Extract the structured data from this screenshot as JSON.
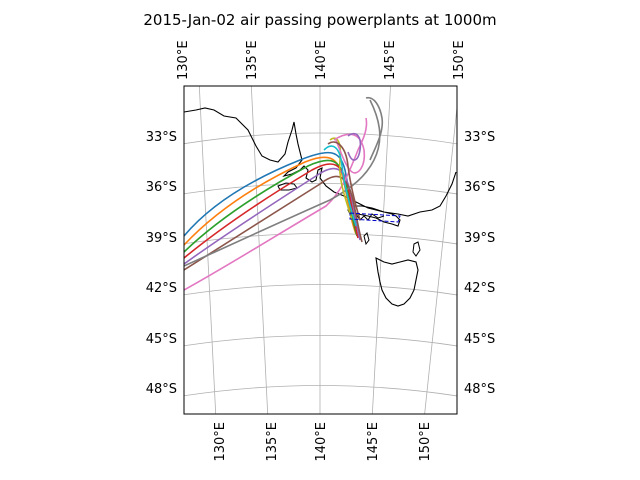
{
  "title": "2015-Jan-02 air passing powerplants at 1000m",
  "map": {
    "lon_ticks_top": [
      "130°E",
      "135°E",
      "140°E",
      "145°E",
      "150°E"
    ],
    "lon_ticks_bottom": [
      "130°E",
      "135°E",
      "140°E",
      "145°E",
      "150°E"
    ],
    "lat_ticks_left": [
      "33°S",
      "36°S",
      "39°S",
      "42°S",
      "45°S",
      "48°S"
    ],
    "lat_ticks_right": [
      "33°S",
      "36°S",
      "39°S",
      "42°S",
      "45°S",
      "48°S"
    ],
    "gridlines": true,
    "coastline_color": "#000000",
    "grid_color": "#b0b0b0",
    "region_box_color": "#0000cc"
  },
  "trajectories": {
    "colors": [
      "#1f77b4",
      "#ff7f0e",
      "#2ca02c",
      "#d62728",
      "#9467bd",
      "#8c564b",
      "#e377c2",
      "#7f7f7f",
      "#bcbd22",
      "#17becf"
    ]
  }
}
